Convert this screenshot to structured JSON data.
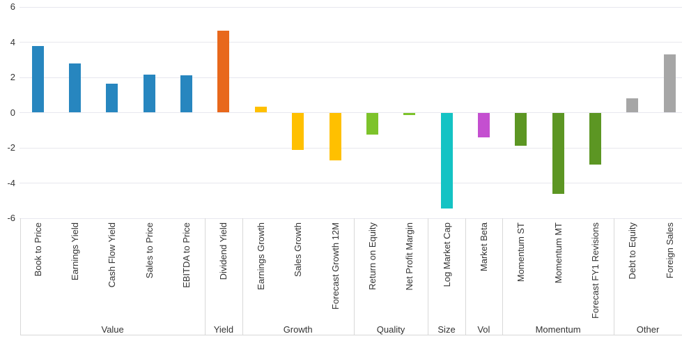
{
  "chart_data": {
    "type": "bar",
    "title": "",
    "xlabel": "",
    "ylabel": "",
    "ylim": [
      -6,
      6
    ],
    "yticks": [
      6,
      4,
      2,
      0,
      -2,
      -4,
      -6
    ],
    "grid": true,
    "legend": false,
    "background_color": "#ffffff",
    "gridline_color": "#e7e7ee",
    "axis_line_color": "#d8d8d8",
    "text_color": "#333333",
    "groups": [
      {
        "name": "Value",
        "color": "#2786BF",
        "bars": [
          {
            "label": "Book to Price",
            "value": 3.8
          },
          {
            "label": "Earnings Yield",
            "value": 2.8
          },
          {
            "label": "Cash Flow Yield",
            "value": 1.65
          },
          {
            "label": "Sales to Price",
            "value": 2.15
          },
          {
            "label": "EBITDA to Price",
            "value": 2.1
          }
        ]
      },
      {
        "name": "Yield",
        "color": "#E8681C",
        "bars": [
          {
            "label": "Dividend Yield",
            "value": 4.65
          }
        ]
      },
      {
        "name": "Growth",
        "color": "#FFC000",
        "bars": [
          {
            "label": "Earnings Growth",
            "value": 0.35
          },
          {
            "label": "Sales Growth",
            "value": -2.1
          },
          {
            "label": "Forecast Growth 12M",
            "value": -2.7
          }
        ]
      },
      {
        "name": "Quality",
        "color": "#7DC32B",
        "bars": [
          {
            "label": "Return on Equity",
            "value": -1.25
          },
          {
            "label": "Net Profit Margin",
            "value": -0.15
          }
        ]
      },
      {
        "name": "Size",
        "color": "#14C3C4",
        "bars": [
          {
            "label": "Log Market Cap",
            "value": -5.45
          }
        ]
      },
      {
        "name": "Vol",
        "color": "#C44FD0",
        "bars": [
          {
            "label": "Market Beta",
            "value": -1.4
          }
        ]
      },
      {
        "name": "Momentum",
        "color": "#5C9623",
        "bars": [
          {
            "label": "Momentum ST",
            "value": -1.9
          },
          {
            "label": "Momentum MT",
            "value": -4.6
          },
          {
            "label": "Forecast FY1 Revisions",
            "value": -2.95
          }
        ]
      },
      {
        "name": "Other",
        "color": "#A6A6A6",
        "bars": [
          {
            "label": "Debt to Equity",
            "value": 0.8
          },
          {
            "label": "Foreign Sales",
            "value": 3.3
          }
        ]
      }
    ]
  }
}
